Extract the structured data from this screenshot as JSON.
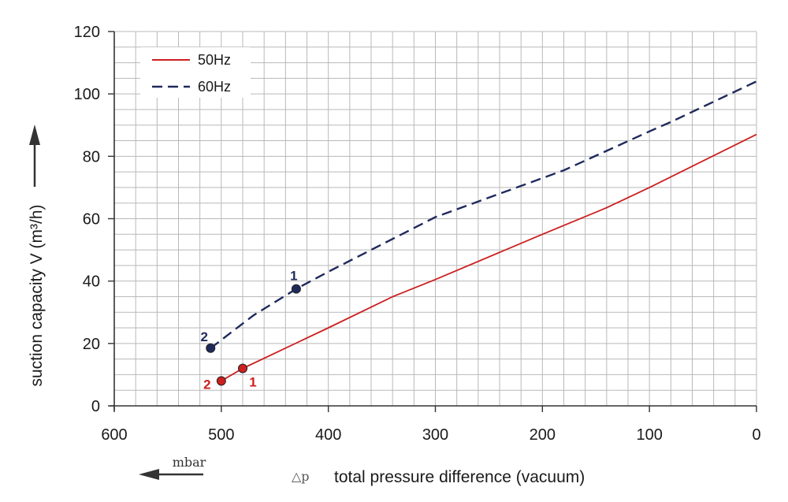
{
  "chart_data": {
    "type": "line",
    "xlabel": "total pressure difference (vacuum)",
    "xlabel_symbol": "△p",
    "x_unit_label": "mbar",
    "ylabel": "suction capacity V (m³/h)",
    "xlim": [
      600,
      0
    ],
    "ylim": [
      0,
      120
    ],
    "x_ticks": [
      "600",
      "500",
      "400",
      "300",
      "200",
      "100",
      "0"
    ],
    "y_ticks": [
      "0",
      "20",
      "40",
      "60",
      "80",
      "100",
      "120"
    ],
    "grid": true,
    "legend_position": "top-left",
    "colors": {
      "50hz": "#cc1f1f",
      "60hz": "#1f2a5c",
      "grid": "#b9b9b9"
    },
    "series": [
      {
        "name": "50Hz",
        "style": "solid",
        "x": [
          500,
          480,
          400,
          340,
          300,
          200,
          140,
          100,
          0
        ],
        "y": [
          8,
          12,
          25,
          35,
          40.5,
          55,
          63.5,
          70,
          87
        ]
      },
      {
        "name": "60Hz",
        "style": "dashed",
        "x": [
          510,
          470,
          430,
          400,
          340,
          300,
          240,
          180,
          100,
          80,
          0
        ],
        "y": [
          18.5,
          29,
          37.5,
          43,
          53.5,
          60.5,
          68,
          75.5,
          88,
          91,
          104
        ]
      }
    ],
    "annotations": [
      {
        "series": "50Hz",
        "label": "1",
        "x": 480,
        "y": 12
      },
      {
        "series": "50Hz",
        "label": "2",
        "x": 500,
        "y": 8
      },
      {
        "series": "60Hz",
        "label": "1",
        "x": 430,
        "y": 37.5
      },
      {
        "series": "60Hz",
        "label": "2",
        "x": 510,
        "y": 18.5
      }
    ]
  }
}
